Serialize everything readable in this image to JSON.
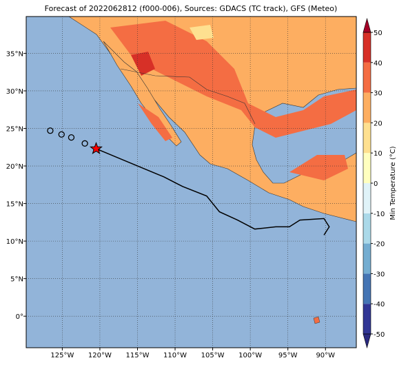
{
  "map": {
    "title": "Forecast of 2022062812 (f000-006), Sources: GDACS (TC track), GFS (Meteo)",
    "lonlim": [
      -129.8,
      -85.9
    ],
    "latlim": [
      -4.2,
      39.9
    ],
    "lonticks": [
      {
        "value": -125,
        "label": "125°W"
      },
      {
        "value": -120,
        "label": "120°W"
      },
      {
        "value": -115,
        "label": "115°W"
      },
      {
        "value": -110,
        "label": "110°W"
      },
      {
        "value": -105,
        "label": "105°W"
      },
      {
        "value": -100,
        "label": "100°W"
      },
      {
        "value": -95,
        "label": "95°W"
      },
      {
        "value": -90,
        "label": "90°W"
      }
    ],
    "latticks": [
      {
        "value": 35,
        "label": "35°N"
      },
      {
        "value": 30,
        "label": "30°N"
      },
      {
        "value": 25,
        "label": "25°N"
      },
      {
        "value": 20,
        "label": "20°N"
      },
      {
        "value": 15,
        "label": "15°N"
      },
      {
        "value": 10,
        "label": "10°N"
      },
      {
        "value": 5,
        "label": "5°N"
      },
      {
        "value": 0,
        "label": "0°"
      }
    ],
    "grid": true,
    "track": {
      "color": "#000000",
      "lon": [
        -120.5,
        -116.8,
        -111.5,
        -109.0,
        -105.8,
        -104.1,
        -101.7,
        -99.4,
        -96.6,
        -94.8,
        -93.4,
        -90.2,
        -89.5,
        -90.2
      ],
      "lat": [
        22.3,
        20.75,
        18.55,
        17.27,
        16.0,
        13.9,
        12.8,
        11.6,
        11.9,
        11.9,
        12.8,
        13.0,
        11.9,
        10.8
      ]
    },
    "past_positions": {
      "lon": [
        -126.6,
        -125.1,
        -123.8,
        -122.0
      ],
      "lat": [
        24.7,
        24.2,
        23.8,
        23.0
      ]
    },
    "current_position": {
      "lon": -120.5,
      "lat": 22.3,
      "color": "#ff0000"
    },
    "colorbar": {
      "label": "Min Temperature (°C)",
      "lim": [
        -50,
        50
      ],
      "ticks": [
        -50,
        -40,
        -30,
        -20,
        -10,
        0,
        10,
        20,
        30,
        40,
        50
      ],
      "colors": [
        "#313695",
        "#4575b4",
        "#74add1",
        "#abd9e9",
        "#e0f3f8",
        "#ffffbf",
        "#fee090",
        "#fdae61",
        "#f46d43",
        "#d73027"
      ],
      "extend_colors": [
        "#2a2a80",
        "#a50026"
      ]
    }
  }
}
